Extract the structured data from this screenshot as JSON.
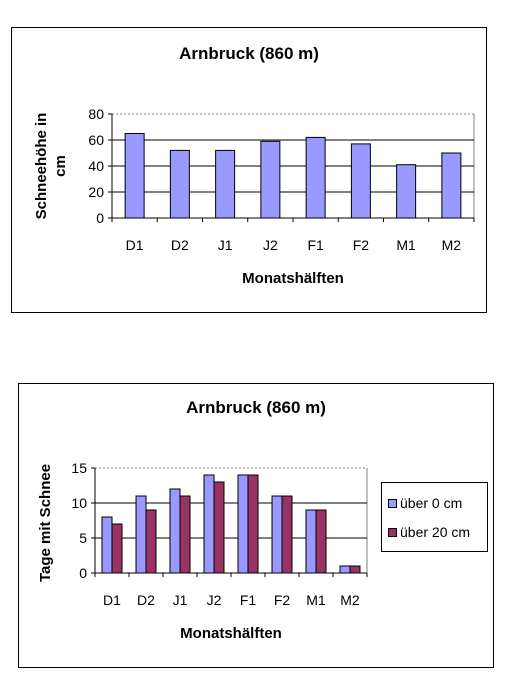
{
  "charts": [
    {
      "type": "bar",
      "title": "Arnbruck (860 m)",
      "xlabel": "Monatshälften",
      "ylabel_lines": [
        "Schneehöhe in",
        "cm"
      ],
      "categories": [
        "D1",
        "D2",
        "J1",
        "J2",
        "F1",
        "F2",
        "M1",
        "M2"
      ],
      "ylim": [
        0,
        80
      ],
      "yticks": [
        0,
        20,
        40,
        60,
        80
      ],
      "grid": true,
      "legend": "none",
      "series": [
        {
          "color": "#9999ff",
          "values": [
            65,
            52,
            52,
            59,
            62,
            57,
            41,
            50
          ]
        }
      ]
    },
    {
      "type": "bar",
      "title": "Arnbruck (860 m)",
      "xlabel": "Monatshälften",
      "ylabel_lines": [
        "Tage mit Schnee"
      ],
      "categories": [
        "D1",
        "D2",
        "J1",
        "J2",
        "F1",
        "F2",
        "M1",
        "M2"
      ],
      "ylim": [
        0,
        15
      ],
      "yticks": [
        0,
        5,
        10,
        15
      ],
      "grid": true,
      "legend": "right",
      "series": [
        {
          "name": "über 0 cm",
          "color": "#9999ff",
          "values": [
            8,
            11,
            12,
            14,
            14,
            11,
            9,
            1
          ]
        },
        {
          "name": "über 20 cm",
          "color": "#993366",
          "values": [
            7,
            9,
            11,
            13,
            14,
            11,
            9,
            1
          ]
        }
      ]
    }
  ]
}
